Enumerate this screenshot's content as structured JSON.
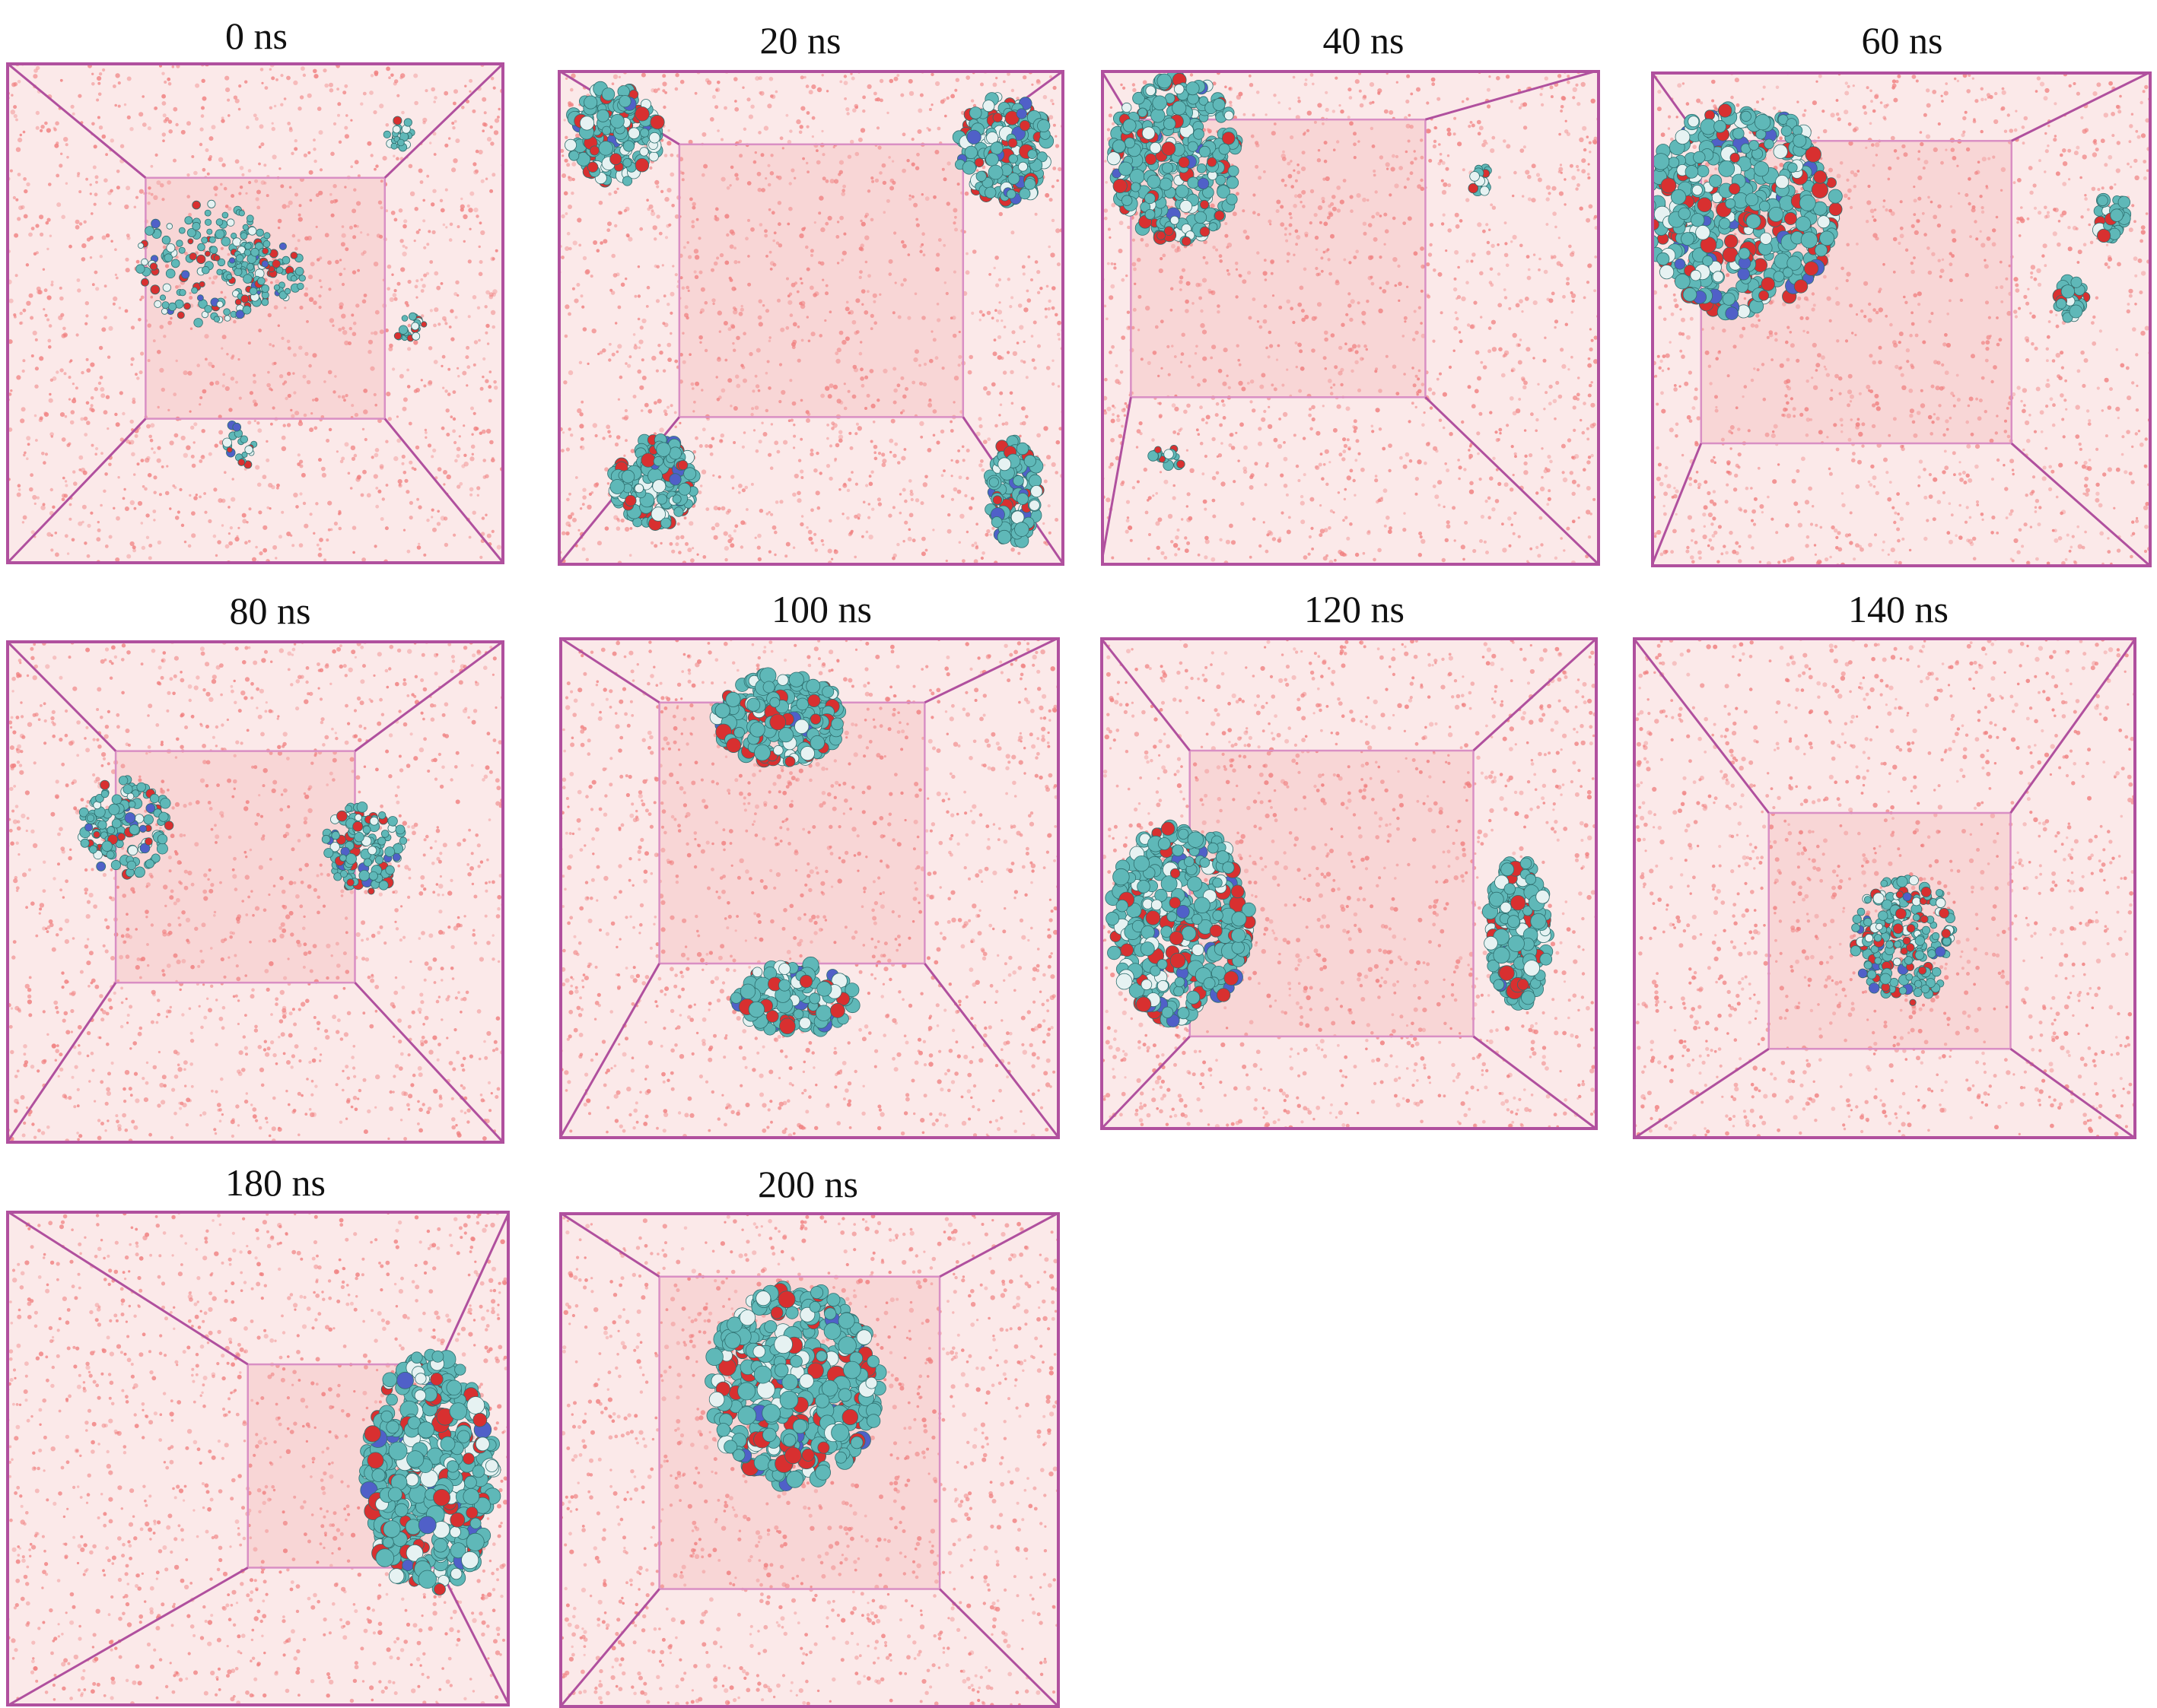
{
  "colors": {
    "box_edge": "#b0509e",
    "inner_edge": "#d98fc4",
    "water": "#f08080",
    "carbon": "#5fb8b8",
    "oxygen": "#d83030",
    "nitrogen": "#5060c8",
    "hydrogen": "#e6f2f2"
  },
  "panels": [
    {
      "label": "0 ns",
      "molecule": "dispersed chains"
    },
    {
      "label": "20 ns",
      "molecule": "four clusters"
    },
    {
      "label": "40 ns",
      "molecule": "large cluster with fragments"
    },
    {
      "label": "60 ns",
      "molecule": "large cluster with fragments"
    },
    {
      "label": "80 ns",
      "molecule": "two clusters"
    },
    {
      "label": "100 ns",
      "molecule": "two clusters"
    },
    {
      "label": "120 ns",
      "molecule": "two clusters"
    },
    {
      "label": "140 ns",
      "molecule": "single cluster"
    },
    {
      "label": "180 ns",
      "molecule": "single cluster"
    },
    {
      "label": "200 ns",
      "molecule": "single cluster"
    }
  ]
}
